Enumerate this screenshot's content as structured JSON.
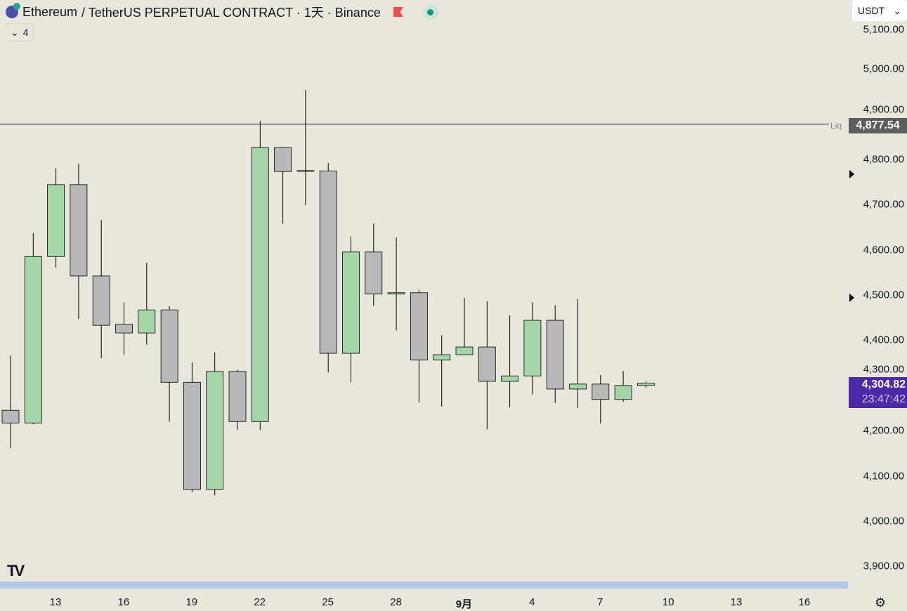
{
  "header": {
    "symbol": "Ethereum",
    "pair": "/ TetherUS PERPETUAL CONTRACT · 1天 · Binance",
    "indicator_count": "4",
    "currency": "USDT",
    "currency_chevron": "⌄"
  },
  "price_scale": {
    "ticks": [
      "5,100.00",
      "5,000.00",
      "4,900.00",
      "4,800.00",
      "4,700.00",
      "4,600.00",
      "4,500.00",
      "4,400.00",
      "4,300.00",
      "4,200.00",
      "4,100.00",
      "4,000.00",
      "3,900.00"
    ],
    "liq_label": "Liq",
    "liq_price": "4,877.54",
    "last_price": "4,304.82",
    "countdown": "23:47:42"
  },
  "time_scale": {
    "labels": [
      "13",
      "16",
      "19",
      "22",
      "25",
      "28",
      "9月",
      "4",
      "7",
      "10",
      "13",
      "16"
    ]
  },
  "logo": "TV",
  "colors": {
    "up": "#a5d6a7",
    "down": "#b8b8b8",
    "liq_line": "#5d5d5d",
    "last_price_bg": "#4b2aa8"
  },
  "chart_data": {
    "type": "candlestick",
    "title": "Ethereum / TetherUS PERPETUAL CONTRACT · 1天 · Binance",
    "ylim": [
      3870,
      5130
    ],
    "x": [
      "8/11",
      "8/12",
      "8/13",
      "8/14",
      "8/15",
      "8/16",
      "8/17",
      "8/18",
      "8/19",
      "8/20",
      "8/21",
      "8/22",
      "8/23",
      "8/24",
      "8/25",
      "8/26",
      "8/27",
      "8/28",
      "8/29",
      "8/30",
      "8/31",
      "9/1",
      "9/2",
      "9/3",
      "9/4",
      "9/5",
      "9/6",
      "9/7",
      "9/8"
    ],
    "open": [
      4245,
      4217,
      4585,
      4744,
      4542,
      4435,
      4416,
      4467,
      4307,
      4070,
      4331,
      4220,
      4826,
      4775,
      4774,
      4371,
      4595,
      4502,
      4505,
      4356,
      4368,
      4385,
      4309,
      4321,
      4444,
      4292,
      4303,
      4269,
      4300
    ],
    "high": [
      4366,
      4637,
      4780,
      4790,
      4666,
      4484,
      4571,
      4475,
      4351,
      4373,
      4335,
      4885,
      4826,
      4953,
      4792,
      4629,
      4658,
      4627,
      4511,
      4411,
      4494,
      4486,
      4455,
      4484,
      4477,
      4491,
      4323,
      4332,
      4309
    ],
    "low": [
      4161,
      4214,
      4561,
      4447,
      4360,
      4368,
      4390,
      4220,
      4064,
      4057,
      4202,
      4202,
      4658,
      4699,
      4329,
      4306,
      4475,
      4422,
      4262,
      4253,
      4368,
      4203,
      4252,
      4280,
      4261,
      4250,
      4216,
      4264,
      4295
    ],
    "close": [
      4217,
      4585,
      4744,
      4542,
      4433,
      4416,
      4467,
      4307,
      4070,
      4331,
      4220,
      4826,
      4773,
      4774,
      4371,
      4595,
      4502,
      4505,
      4356,
      4368,
      4385,
      4309,
      4321,
      4444,
      4292,
      4303,
      4269,
      4300,
      4305
    ],
    "hlines": [
      {
        "label": "Liq",
        "value": 4877.54
      }
    ],
    "last_value": 4304.82,
    "markers": [
      4760,
      4498
    ]
  }
}
